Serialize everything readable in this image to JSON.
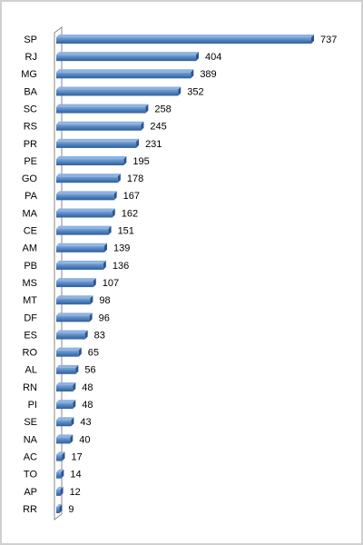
{
  "chart_data": {
    "type": "bar",
    "orientation": "horizontal",
    "categories": [
      "SP",
      "RJ",
      "MG",
      "BA",
      "SC",
      "RS",
      "PR",
      "PE",
      "GO",
      "PA",
      "MA",
      "CE",
      "AM",
      "PB",
      "MS",
      "MT",
      "DF",
      "ES",
      "RO",
      "AL",
      "RN",
      "PI",
      "SE",
      "NA",
      "AC",
      "TO",
      "AP",
      "RR"
    ],
    "values": [
      737,
      404,
      389,
      352,
      258,
      245,
      231,
      195,
      178,
      167,
      162,
      151,
      139,
      136,
      107,
      98,
      96,
      83,
      65,
      56,
      48,
      48,
      43,
      40,
      17,
      14,
      12,
      9
    ],
    "color": "#4f81bd"
  }
}
